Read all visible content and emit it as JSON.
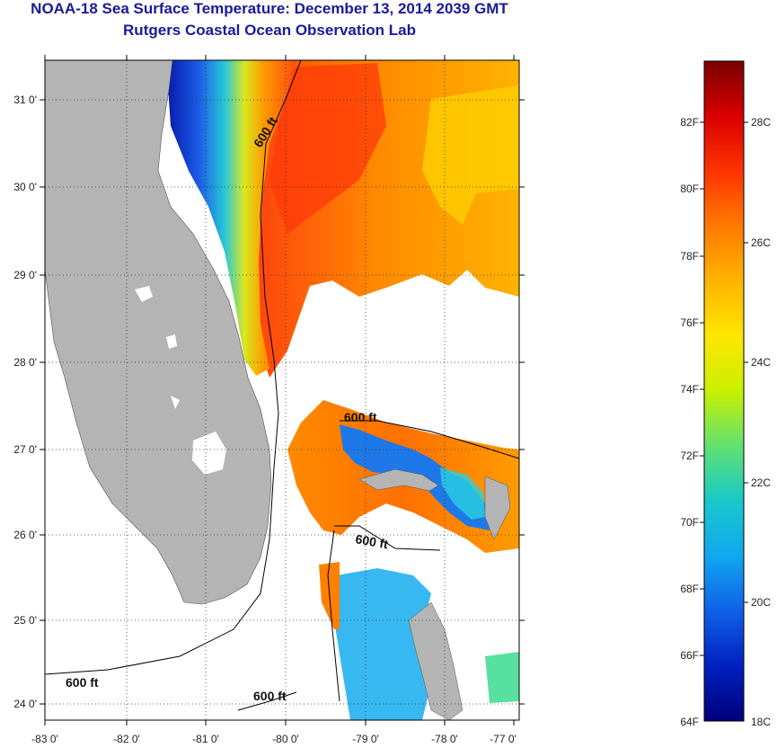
{
  "header": {
    "title": "NOAA-18 Sea Surface Temperature:  December 13, 2014 2039 GMT",
    "subtitle": "Rutgers Coastal Ocean Observation Lab"
  },
  "map": {
    "lat_ticks": [
      "31 0'",
      "30 0'",
      "29 0'",
      "28 0'",
      "27 0'",
      "26 0'",
      "25 0'",
      "24 0'"
    ],
    "lon_ticks": [
      "-83 0'",
      "-82 0'",
      "-81 0'",
      "-80 0'",
      "-79 0'",
      "-78 0'",
      "-77 0'"
    ],
    "contour_labels": [
      "600 ft",
      "600 ft",
      "600 ft",
      "600 ft",
      "600 ft"
    ],
    "land_color": "#b4b4b4",
    "nodata_color": "#ffffff"
  },
  "colorbar": {
    "fahrenheit_labels": [
      "82F",
      "80F",
      "78F",
      "76F",
      "74F",
      "72F",
      "70F",
      "68F",
      "66F",
      "64F"
    ],
    "celsius_labels": [
      "28C",
      "26C",
      "24C",
      "22C",
      "20C",
      "18C"
    ],
    "gradient_colors": [
      "#7a0000",
      "#d90000",
      "#ff3300",
      "#ff7a00",
      "#ffb400",
      "#ffe600",
      "#c8f000",
      "#60e070",
      "#18c8c8",
      "#10a8f0",
      "#1060e8",
      "#0020c0",
      "#00007a"
    ]
  }
}
